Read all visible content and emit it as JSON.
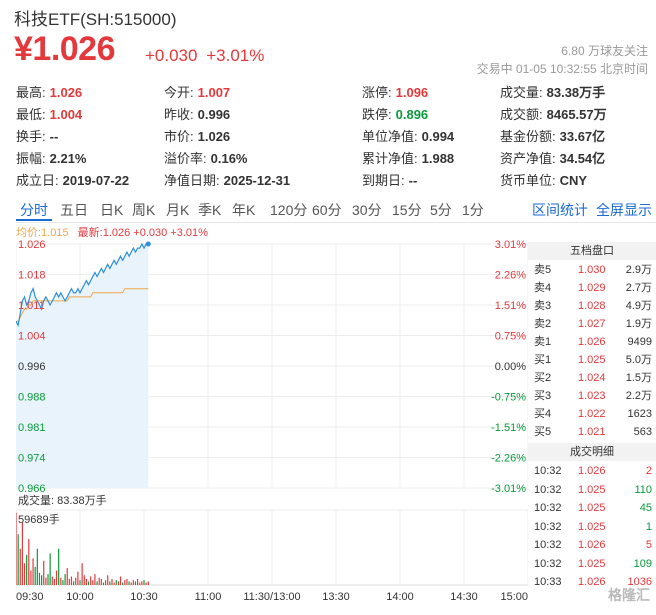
{
  "header": {
    "title": "科技ETF(SH:515000)",
    "price": "¥1.026",
    "change": "+0.030",
    "change_pct": "+3.01%",
    "followers": "6.80 万球友关注",
    "status": "交易中 01-05 10:32:55 北京时间"
  },
  "stats": [
    [
      {
        "label": "最高:",
        "value": "1.026",
        "color": "red"
      },
      {
        "label": "今开:",
        "value": "1.007",
        "color": "red"
      },
      {
        "label": "涨停:",
        "value": "1.096",
        "color": "red"
      },
      {
        "label": "成交量:",
        "value": "83.38万手",
        "color": ""
      }
    ],
    [
      {
        "label": "最低:",
        "value": "1.004",
        "color": "red"
      },
      {
        "label": "昨收:",
        "value": "0.996",
        "color": ""
      },
      {
        "label": "跌停:",
        "value": "0.896",
        "color": "green"
      },
      {
        "label": "成交额:",
        "value": "8465.57万",
        "color": ""
      }
    ],
    [
      {
        "label": "换手:",
        "value": "--",
        "color": ""
      },
      {
        "label": "市价:",
        "value": "1.026",
        "color": ""
      },
      {
        "label": "单位净值:",
        "value": "0.994",
        "color": ""
      },
      {
        "label": "基金份额:",
        "value": "33.67亿",
        "color": ""
      }
    ],
    [
      {
        "label": "振幅:",
        "value": "2.21%",
        "color": ""
      },
      {
        "label": "溢价率:",
        "value": "0.16%",
        "color": ""
      },
      {
        "label": "累计净值:",
        "value": "1.988",
        "color": ""
      },
      {
        "label": "资产净值:",
        "value": "34.54亿",
        "color": ""
      }
    ],
    [
      {
        "label": "成立日:",
        "value": "2019-07-22",
        "color": ""
      },
      {
        "label": "净值日期:",
        "value": "2025-12-31",
        "color": ""
      },
      {
        "label": "到期日:",
        "value": "--",
        "color": ""
      },
      {
        "label": "货币单位:",
        "value": "CNY",
        "color": ""
      }
    ]
  ],
  "tabs": [
    "分时",
    "五日",
    "日K",
    "周K",
    "月K",
    "季K",
    "年K",
    "120分",
    "60分",
    "30分",
    "15分",
    "5分",
    "1分"
  ],
  "active_tab": "分时",
  "links": {
    "interval_stats": "区间统计",
    "fullscreen": "全屏显示"
  },
  "legend": {
    "avg": "均价:1.015",
    "latest": "最新:1.026 +0.030 +3.01%"
  },
  "colors": {
    "up": "#e4393c",
    "down": "#0a9a3b",
    "price_line": "#2f8fd8",
    "avg_line": "#f0a64b"
  },
  "chart_data": {
    "type": "line",
    "y_labels": [
      "1.026",
      "1.018",
      "1.011",
      "1.004",
      "0.996",
      "0.988",
      "0.981",
      "0.974",
      "0.966"
    ],
    "pct_labels": [
      "3.01%",
      "2.26%",
      "1.51%",
      "0.75%",
      "0.00%",
      "-0.75%",
      "-1.51%",
      "-2.26%",
      "-3.01%"
    ],
    "ylim": [
      0.966,
      1.026
    ],
    "x_labels": [
      "09:30",
      "10:00",
      "10:30",
      "11:00",
      "11:30/13:00",
      "13:30",
      "14:00",
      "14:30",
      "15:00"
    ],
    "total_minutes": 240,
    "price": [
      1.007,
      1.006,
      1.009,
      1.012,
      1.013,
      1.011,
      1.012,
      1.014,
      1.015,
      1.013,
      1.012,
      1.011,
      1.01,
      1.012,
      1.013,
      1.012,
      1.011,
      1.012,
      1.013,
      1.014,
      1.013,
      1.014,
      1.013,
      1.012,
      1.013,
      1.014,
      1.015,
      1.014,
      1.014,
      1.015,
      1.014,
      1.015,
      1.016,
      1.017,
      1.016,
      1.017,
      1.018,
      1.019,
      1.018,
      1.019,
      1.02,
      1.019,
      1.02,
      1.021,
      1.02,
      1.021,
      1.022,
      1.021,
      1.022,
      1.023,
      1.022,
      1.023,
      1.024,
      1.023,
      1.024,
      1.025,
      1.024,
      1.025,
      1.025,
      1.026,
      1.025,
      1.026,
      1.026
    ],
    "avg": [
      1.007,
      1.007,
      1.008,
      1.009,
      1.01,
      1.01,
      1.011,
      1.011,
      1.012,
      1.012,
      1.012,
      1.012,
      1.012,
      1.012,
      1.012,
      1.012,
      1.012,
      1.012,
      1.012,
      1.012,
      1.012,
      1.012,
      1.012,
      1.012,
      1.012,
      1.013,
      1.013,
      1.013,
      1.013,
      1.013,
      1.013,
      1.013,
      1.013,
      1.013,
      1.013,
      1.013,
      1.014,
      1.014,
      1.014,
      1.014,
      1.014,
      1.014,
      1.014,
      1.014,
      1.014,
      1.014,
      1.014,
      1.014,
      1.014,
      1.014,
      1.014,
      1.015,
      1.015,
      1.015,
      1.015,
      1.015,
      1.015,
      1.015,
      1.015,
      1.015,
      1.015,
      1.015,
      1.015
    ],
    "volume_label": "成交量: 83.38万手",
    "volume_max": "59689手",
    "volume": [
      59689,
      42000,
      30000,
      52000,
      18000,
      25000,
      38000,
      12000,
      22000,
      15000,
      30000,
      10000,
      8000,
      20000,
      6000,
      9000,
      26000,
      7000,
      5000,
      12000,
      30000,
      6000,
      4000,
      9000,
      14000,
      5000,
      7000,
      3000,
      6000,
      11000,
      4000,
      18000,
      8000,
      5000,
      3000,
      7000,
      4000,
      9000,
      3000,
      6000,
      5000,
      2000,
      4000,
      8000,
      3000,
      5000,
      2000,
      4000,
      3000,
      7000,
      2000,
      4000,
      5000,
      3000,
      2000,
      4000,
      3000,
      5000,
      2000,
      3000,
      4000,
      2000,
      3000
    ],
    "volume_ymax": 62000
  },
  "order_book": {
    "title": "五档盘口",
    "asks": [
      {
        "label": "卖5",
        "price": "1.030",
        "vol": "2.9万"
      },
      {
        "label": "卖4",
        "price": "1.029",
        "vol": "2.7万"
      },
      {
        "label": "卖3",
        "price": "1.028",
        "vol": "4.9万"
      },
      {
        "label": "卖2",
        "price": "1.027",
        "vol": "1.9万"
      },
      {
        "label": "卖1",
        "price": "1.026",
        "vol": "9499"
      }
    ],
    "bids": [
      {
        "label": "买1",
        "price": "1.025",
        "vol": "5.0万"
      },
      {
        "label": "买2",
        "price": "1.024",
        "vol": "1.5万"
      },
      {
        "label": "买3",
        "price": "1.023",
        "vol": "2.2万"
      },
      {
        "label": "买4",
        "price": "1.022",
        "vol": "1623"
      },
      {
        "label": "买5",
        "price": "1.021",
        "vol": "563"
      }
    ]
  },
  "trades": {
    "title": "成交明细",
    "rows": [
      {
        "time": "10:32",
        "price": "1.026",
        "vol": "2",
        "dir": "up"
      },
      {
        "time": "10:32",
        "price": "1.025",
        "vol": "110",
        "dir": "down"
      },
      {
        "time": "10:32",
        "price": "1.025",
        "vol": "45",
        "dir": "down"
      },
      {
        "time": "10:32",
        "price": "1.025",
        "vol": "1",
        "dir": "down"
      },
      {
        "time": "10:32",
        "price": "1.026",
        "vol": "5",
        "dir": "up"
      },
      {
        "time": "10:32",
        "price": "1.025",
        "vol": "109",
        "dir": "down"
      },
      {
        "time": "10:33",
        "price": "1.026",
        "vol": "1036",
        "dir": "up"
      }
    ]
  },
  "watermark": "格隆汇"
}
